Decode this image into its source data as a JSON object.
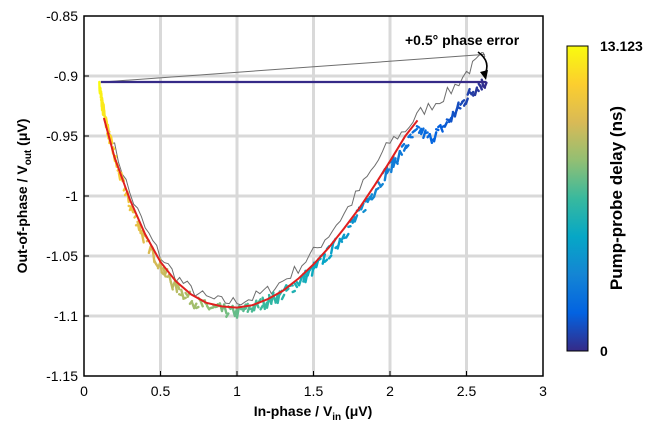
{
  "chart_data": {
    "type": "line",
    "xlabel_main": "In-phase / V",
    "xlabel_sub": "in",
    "xlabel_unit": " (μV)",
    "ylabel_main": "Out-of-phase / V",
    "ylabel_sub": "out",
    "ylabel_unit": " (μV)",
    "xlim": [
      0,
      3
    ],
    "ylim": [
      -1.15,
      -0.85
    ],
    "xticks": [
      "0",
      "0.5",
      "1",
      "1.5",
      "2",
      "2.5",
      "3"
    ],
    "yticks": [
      "-0.85",
      "-0.9",
      "-0.95",
      "-1",
      "-1.05",
      "-1.1",
      "-1.15"
    ],
    "grid": true,
    "annotation": "+0.5° phase error",
    "colorbar": {
      "title": "Pump-probe delay (ns)",
      "min_label": "0",
      "max_label": "13.123",
      "colormap": [
        "#352a87",
        "#0363e1",
        "#1485d4",
        "#06a7c6",
        "#38b99e",
        "#92bf73",
        "#d9ba56",
        "#fcce2e",
        "#f9fb0e"
      ]
    },
    "series": [
      {
        "style": "noisy-measured-colored",
        "x": [
          0.1,
          0.11,
          0.12,
          0.14,
          0.16,
          0.19,
          0.22,
          0.26,
          0.3,
          0.35,
          0.4,
          0.46,
          0.52,
          0.58,
          0.65,
          0.72,
          0.79,
          0.86,
          0.93,
          1.0,
          1.07,
          1.14,
          1.21,
          1.28,
          1.35,
          1.42,
          1.49,
          1.56,
          1.63,
          1.7,
          1.77,
          1.84,
          1.91,
          1.98,
          2.05,
          2.12,
          2.19,
          2.26,
          2.33,
          2.4,
          2.46,
          2.52,
          2.58,
          2.63
        ],
        "y": [
          -0.905,
          -0.915,
          -0.925,
          -0.935,
          -0.948,
          -0.962,
          -0.977,
          -0.992,
          -1.008,
          -1.022,
          -1.037,
          -1.05,
          -1.062,
          -1.073,
          -1.081,
          -1.088,
          -1.092,
          -1.094,
          -1.096,
          -1.097,
          -1.094,
          -1.091,
          -1.087,
          -1.083,
          -1.077,
          -1.07,
          -1.062,
          -1.053,
          -1.043,
          -1.032,
          -1.02,
          -1.007,
          -0.993,
          -0.979,
          -0.968,
          -0.955,
          -0.945,
          -0.952,
          -0.945,
          -0.935,
          -0.925,
          -0.915,
          -0.908,
          -0.905
        ],
        "return_x": [
          2.63,
          0.11
        ],
        "return_y": [
          -0.905,
          -0.905
        ]
      },
      {
        "style": "fit-red",
        "x": [
          0.13,
          0.2,
          0.3,
          0.4,
          0.5,
          0.6,
          0.7,
          0.8,
          0.9,
          1.0,
          1.1,
          1.2,
          1.3,
          1.4,
          1.5,
          1.6,
          1.7,
          1.8,
          1.9,
          2.0,
          2.1,
          2.18
        ],
        "y": [
          -0.935,
          -0.968,
          -1.003,
          -1.032,
          -1.055,
          -1.071,
          -1.082,
          -1.089,
          -1.092,
          -1.093,
          -1.091,
          -1.086,
          -1.079,
          -1.069,
          -1.057,
          -1.043,
          -1.027,
          -1.01,
          -0.991,
          -0.971,
          -0.95,
          -0.937
        ]
      },
      {
        "style": "phase-error-grey",
        "x": [
          0.12,
          0.2,
          0.3,
          0.4,
          0.5,
          0.6,
          0.7,
          0.8,
          0.9,
          1.0,
          1.1,
          1.2,
          1.3,
          1.4,
          1.5,
          1.6,
          1.7,
          1.8,
          1.9,
          2.0,
          2.1,
          2.2,
          2.3,
          2.4,
          2.5,
          2.58,
          2.62
        ],
        "y": [
          -0.925,
          -0.96,
          -0.998,
          -1.027,
          -1.05,
          -1.067,
          -1.078,
          -1.085,
          -1.088,
          -1.088,
          -1.085,
          -1.079,
          -1.071,
          -1.06,
          -1.047,
          -1.032,
          -1.015,
          -0.995,
          -0.975,
          -0.955,
          -0.945,
          -0.93,
          -0.922,
          -0.912,
          -0.897,
          -0.887,
          -0.882
        ],
        "return_x": [
          2.62,
          0.12
        ],
        "return_y": [
          -0.882,
          -0.905
        ]
      }
    ]
  }
}
